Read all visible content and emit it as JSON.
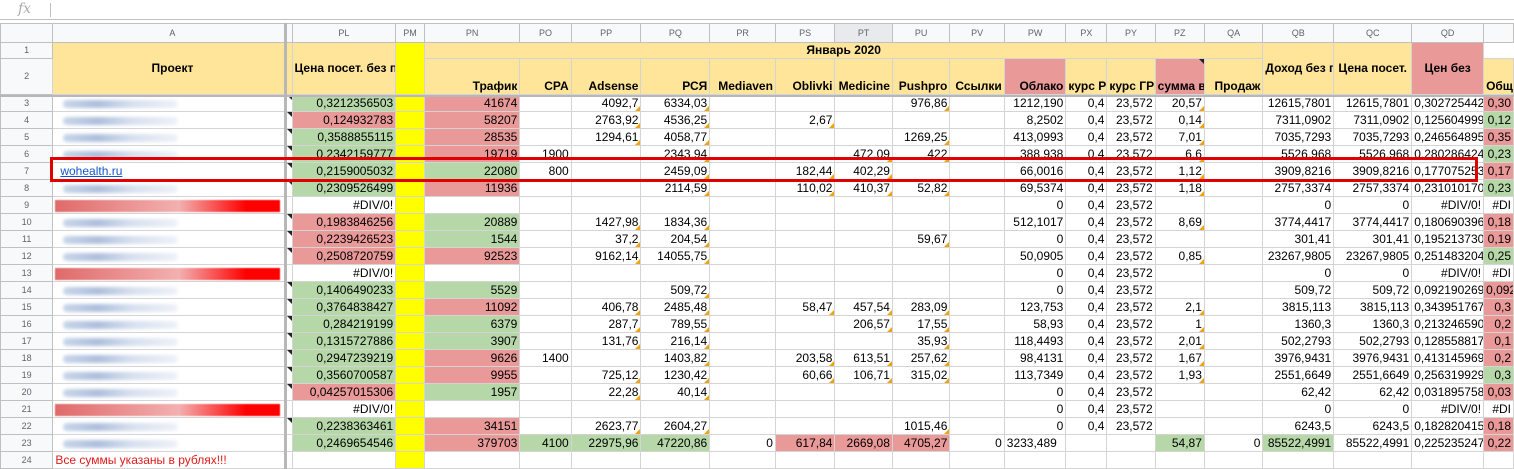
{
  "formula_bar": {
    "fx_label": "fx",
    "value": ""
  },
  "columns": [
    "",
    "A",
    "PL",
    "PM",
    "PN",
    "PO",
    "PP",
    "PQ",
    "PR",
    "PS",
    "PT",
    "PU",
    "PV",
    "PW",
    "PX",
    "PY",
    "PZ",
    "QA",
    "QB",
    "QC",
    "QD",
    ""
  ],
  "row_numbers": [
    "1",
    "2",
    "3",
    "4",
    "5",
    "6",
    "7",
    "8",
    "9",
    "10",
    "11",
    "12",
    "13",
    "14",
    "15",
    "16",
    "17",
    "18",
    "19",
    "20",
    "21",
    "22",
    "23",
    "24"
  ],
  "header": {
    "project": "Проект",
    "price_no_direct": "Цена посет. без прямых",
    "month": "Январь 2020",
    "traffic": "Трафик",
    "cpa": "CPA",
    "adsense": "Adsense",
    "rsya": "РСЯ",
    "mediaven": "Mediaven",
    "oblivki": "Oblivki",
    "medicine": "Medicine",
    "pushpro": "Pushpro",
    "links": "Ссылки",
    "cloud": "Облако",
    "rate_rub": "курс РУБ",
    "rate_uah": "курс ГРН",
    "sum_usd": "сумма в $",
    "sales": "Продаж",
    "total": "Общий",
    "income_no_direct": "Доход без прямых продаж",
    "visit_price": "Цена посет.",
    "price_cut": "Цен без"
  },
  "rows": [
    [
      "",
      "0,3212356503",
      "41674",
      "",
      "4092,7",
      "6334,03",
      "",
      "",
      "",
      "976,86",
      "",
      "1212,190",
      "0,4",
      "23,572",
      "20,57",
      "",
      "12615,7801",
      "12615,7801",
      "0,302725442",
      "0,30"
    ],
    [
      "",
      "0,124932783",
      "58207",
      "",
      "2763,92",
      "4536,25",
      "",
      "2,67",
      "",
      "",
      "",
      "8,2502",
      "0,4",
      "23,572",
      "0,14",
      "",
      "7311,0902",
      "7311,0902",
      "0,125604999",
      "0,12"
    ],
    [
      "",
      "0,3588855115",
      "28535",
      "",
      "1294,61",
      "4058,77",
      "",
      "",
      "",
      "1269,25",
      "",
      "413,0993",
      "0,4",
      "23,572",
      "7,01",
      "",
      "7035,7293",
      "7035,7293",
      "0,246564895",
      "0,35"
    ],
    [
      "",
      "0,2342159777",
      "19719",
      "1900",
      "",
      "2343,94",
      "",
      "",
      "472,09",
      "422",
      "",
      "388,938",
      "0,4",
      "23,572",
      "6,6",
      "",
      "5526,968",
      "5526,968",
      "0,280286424",
      "0,23"
    ],
    [
      "wohealth.ru",
      "0,2159005032",
      "22080",
      "800",
      "",
      "2459,09",
      "",
      "182,44",
      "402,29",
      "",
      "",
      "66,0016",
      "0,4",
      "23,572",
      "1,12",
      "",
      "3909,8216",
      "3909,8216",
      "0,177075253",
      "0,17"
    ],
    [
      "",
      "0,2309526499",
      "11936",
      "",
      "",
      "2114,59",
      "",
      "110,02",
      "410,37",
      "52,82",
      "",
      "69,5374",
      "0,4",
      "23,572",
      "1,18",
      "",
      "2757,3374",
      "2757,3374",
      "0,231010170",
      "0,23"
    ],
    [
      "",
      "#DIV/0!",
      "",
      "",
      "",
      "",
      "",
      "",
      "",
      "",
      "",
      "0",
      "0,4",
      "23,572",
      "",
      "",
      "0",
      "0",
      "#DIV/0!",
      "#DI"
    ],
    [
      "",
      "0,1983846256",
      "20889",
      "",
      "1427,98",
      "1834,36",
      "",
      "",
      "",
      "",
      "",
      "512,1017",
      "0,4",
      "23,572",
      "8,69",
      "",
      "3774,4417",
      "3774,4417",
      "0,180690396",
      "0,18"
    ],
    [
      "",
      "0,2239426523",
      "1544",
      "",
      "37,2",
      "204,54",
      "",
      "",
      "",
      "59,67",
      "",
      "0",
      "0,4",
      "23,572",
      "",
      "",
      "301,41",
      "301,41",
      "0,195213730",
      "0,19"
    ],
    [
      "",
      "0,2508720759",
      "92523",
      "",
      "9162,14",
      "14055,75",
      "",
      "",
      "",
      "",
      "",
      "50,0905",
      "0,4",
      "23,572",
      "0,85",
      "",
      "23267,9805",
      "23267,9805",
      "0,251483204",
      "0,25"
    ],
    [
      "",
      "#DIV/0!",
      "",
      "",
      "",
      "",
      "",
      "",
      "",
      "",
      "",
      "0",
      "0,4",
      "23,572",
      "",
      "",
      "0",
      "0",
      "#DIV/0!",
      "#DI"
    ],
    [
      "",
      "0,1406490233",
      "5529",
      "",
      "",
      "509,72",
      "",
      "",
      "",
      "",
      "",
      "0",
      "0,4",
      "23,572",
      "",
      "",
      "509,72",
      "509,72",
      "0,092190269",
      "0,092"
    ],
    [
      "",
      "0,3764838427",
      "11092",
      "",
      "406,78",
      "2485,48",
      "",
      "58,47",
      "457,54",
      "283,09",
      "",
      "123,753",
      "0,4",
      "23,572",
      "2,1",
      "",
      "3815,113",
      "3815,113",
      "0,343951767",
      "0,3"
    ],
    [
      "",
      "0,284219199",
      "6379",
      "",
      "287,7",
      "789,55",
      "",
      "",
      "206,57",
      "17,55",
      "",
      "58,93",
      "0,4",
      "23,572",
      "1",
      "",
      "1360,3",
      "1360,3",
      "0,213246590",
      "0,2"
    ],
    [
      "",
      "0,1315727886",
      "3907",
      "",
      "131,76",
      "216,14",
      "",
      "",
      "",
      "35,93",
      "",
      "118,4493",
      "0,4",
      "23,572",
      "2,01",
      "",
      "502,2793",
      "502,2793",
      "0,128558817",
      "0,1"
    ],
    [
      "",
      "0,2947239219",
      "9626",
      "1400",
      "",
      "1403,82",
      "",
      "203,58",
      "613,51",
      "257,62",
      "",
      "98,4131",
      "0,4",
      "23,572",
      "1,67",
      "",
      "3976,9431",
      "3976,9431",
      "0,413145969",
      "0,2"
    ],
    [
      "",
      "0,3560700587",
      "9955",
      "",
      "725,12",
      "1230,42",
      "",
      "60,66",
      "106,71",
      "315,02",
      "",
      "113,7349",
      "0,4",
      "23,572",
      "1,93",
      "",
      "2551,6649",
      "2551,6649",
      "0,256319929",
      "0,3"
    ],
    [
      "",
      "0,04257015306",
      "1957",
      "",
      "22,28",
      "40,14",
      "",
      "",
      "",
      "",
      "",
      "0",
      "0,4",
      "23,572",
      "",
      "",
      "62,42",
      "62,42",
      "0,031895758",
      "0,03"
    ],
    [
      "",
      "#DIV/0!",
      "",
      "",
      "",
      "",
      "",
      "",
      "",
      "",
      "",
      "0",
      "0,4",
      "23,572",
      "",
      "",
      "0",
      "0",
      "#DIV/0!",
      "#DI"
    ],
    [
      "",
      "0,2238363461",
      "34151",
      "",
      "2623,77",
      "2604,27",
      "",
      "",
      "",
      "1015,46",
      "",
      "0",
      "0,4",
      "23,572",
      "",
      "",
      "6243,5",
      "6243,5",
      "0,182820415",
      "0,18"
    ],
    [
      "",
      "0,2469654546",
      "379703",
      "4100",
      "22975,96",
      "47220,86",
      "0",
      "617,84",
      "2669,08",
      "4705,27",
      "0",
      "3233,489",
      "",
      "",
      "54,87",
      "0",
      "85522,4991",
      "85522,4991",
      "0,225235247",
      "0,22"
    ]
  ],
  "footnote": "Все суммы указаны в рублях!!!",
  "colors": {
    "green": "#b6d7a8",
    "red": "#ea9999",
    "yellow": "#ffff00",
    "header": "#ffe599",
    "highlight": "#e00000"
  }
}
